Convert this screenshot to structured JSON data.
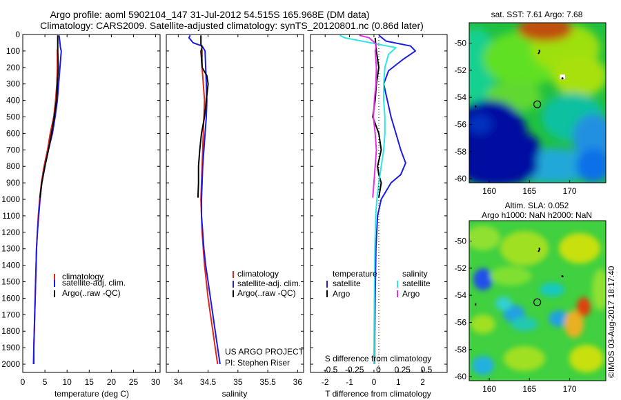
{
  "header": {
    "line1": "Argo profile: aoml 5902104_147 31-Jul-2012 54.515S 165.968E (DM data)",
    "line2": "Climatology: CARS2009. Satellite-adjusted climatology: synTS_20120801.nc (0.86d later)"
  },
  "colors": {
    "climatology": "#e8231a",
    "satellite": "#1a1ae6",
    "argo": "#000000",
    "sat_salinity": "#2ee6e6",
    "argo_salinity": "#e62ee6"
  },
  "legend": {
    "climatology": "climatology",
    "satellite_adj": "satellite-adj. clim.",
    "argo": "Argo(..raw -QC)",
    "temperature_head": "temperature",
    "salinity_head": "salinity",
    "satellite": "satellite",
    "argo_short": "Argo"
  },
  "credit": {
    "project": "US ARGO PROJECT",
    "pi": "PI: Stephen Riser"
  },
  "side_label": "©IMOS 03-Aug-2017 18:17:40",
  "chart_data": [
    {
      "type": "line",
      "id": "temperature",
      "xlabel": "temperature (deg C)",
      "ylabel": "",
      "xlim": [
        0,
        31
      ],
      "ylim": [
        2050,
        0
      ],
      "xticks": [
        0,
        5,
        10,
        15,
        20,
        25,
        30
      ],
      "yticks": [
        0,
        100,
        200,
        300,
        400,
        500,
        600,
        700,
        800,
        900,
        1000,
        1100,
        1200,
        1300,
        1400,
        1500,
        1600,
        1700,
        1800,
        1900,
        2000
      ],
      "series": [
        {
          "name": "climatology",
          "color": "#e8231a",
          "points": [
            [
              7.8,
              90
            ],
            [
              7.8,
              200
            ],
            [
              7.7,
              300
            ],
            [
              7.4,
              400
            ],
            [
              7.0,
              500
            ],
            [
              6.2,
              600
            ],
            [
              5.6,
              700
            ],
            [
              4.8,
              800
            ],
            [
              4.2,
              900
            ],
            [
              3.8,
              1000
            ],
            [
              3.5,
              1100
            ],
            [
              3.3,
              1200
            ],
            [
              3.1,
              1300
            ],
            [
              3.0,
              1400
            ],
            [
              2.9,
              1500
            ],
            [
              2.8,
              1600
            ],
            [
              2.7,
              1700
            ],
            [
              2.6,
              1800
            ],
            [
              2.5,
              1900
            ],
            [
              2.4,
              2000
            ]
          ]
        },
        {
          "name": "satellite-adj. clim.",
          "color": "#1a1ae6",
          "points": [
            [
              8.2,
              5
            ],
            [
              8.4,
              50
            ],
            [
              8.5,
              80
            ],
            [
              8.7,
              100
            ],
            [
              8.4,
              200
            ],
            [
              8.1,
              300
            ],
            [
              7.8,
              400
            ],
            [
              7.3,
              500
            ],
            [
              6.7,
              600
            ],
            [
              5.8,
              700
            ],
            [
              5.0,
              800
            ],
            [
              4.3,
              900
            ],
            [
              3.9,
              1000
            ],
            [
              3.6,
              1100
            ],
            [
              3.3,
              1200
            ],
            [
              3.1,
              1300
            ],
            [
              3.0,
              1400
            ],
            [
              2.9,
              1500
            ],
            [
              2.8,
              1600
            ],
            [
              2.7,
              1700
            ],
            [
              2.6,
              1800
            ],
            [
              2.5,
              1900
            ],
            [
              2.5,
              2000
            ]
          ]
        },
        {
          "name": "Argo(..raw -QC)",
          "color": "#000000",
          "points": [
            [
              7.9,
              5
            ],
            [
              7.9,
              100
            ],
            [
              8.0,
              200
            ],
            [
              7.8,
              300
            ],
            [
              7.6,
              400
            ],
            [
              7.1,
              500
            ],
            [
              6.5,
              600
            ],
            [
              5.8,
              700
            ],
            [
              5.0,
              800
            ],
            [
              4.3,
              900
            ],
            [
              3.9,
              990
            ]
          ]
        }
      ]
    },
    {
      "type": "line",
      "id": "salinity",
      "xlabel": "salinity",
      "ylabel": "",
      "xlim": [
        33.8,
        36.1
      ],
      "ylim": [
        2050,
        0
      ],
      "xticks": [
        34,
        34.5,
        35,
        35.5,
        36
      ],
      "series": [
        {
          "name": "climatology",
          "color": "#e8231a",
          "points": [
            [
              34.4,
              90
            ],
            [
              34.4,
              200
            ],
            [
              34.42,
              300
            ],
            [
              34.44,
              400
            ],
            [
              34.43,
              500
            ],
            [
              34.42,
              600
            ],
            [
              34.41,
              700
            ],
            [
              34.4,
              800
            ],
            [
              34.39,
              900
            ],
            [
              34.38,
              1000
            ],
            [
              34.39,
              1100
            ],
            [
              34.4,
              1200
            ],
            [
              34.42,
              1300
            ],
            [
              34.44,
              1400
            ],
            [
              34.47,
              1500
            ],
            [
              34.5,
              1600
            ],
            [
              34.54,
              1700
            ],
            [
              34.58,
              1800
            ],
            [
              34.62,
              1900
            ],
            [
              34.66,
              2000
            ]
          ]
        },
        {
          "name": "satellite-adj. clim.",
          "color": "#1a1ae6",
          "points": [
            [
              34.2,
              5
            ],
            [
              34.18,
              20
            ],
            [
              34.25,
              50
            ],
            [
              34.4,
              70
            ],
            [
              34.45,
              100
            ],
            [
              34.46,
              200
            ],
            [
              34.47,
              300
            ],
            [
              34.48,
              400
            ],
            [
              34.47,
              500
            ],
            [
              34.45,
              600
            ],
            [
              34.43,
              700
            ],
            [
              34.41,
              800
            ],
            [
              34.4,
              900
            ],
            [
              34.39,
              1000
            ],
            [
              34.39,
              1100
            ],
            [
              34.41,
              1200
            ],
            [
              34.43,
              1300
            ],
            [
              34.46,
              1400
            ],
            [
              34.5,
              1500
            ],
            [
              34.54,
              1600
            ],
            [
              34.58,
              1700
            ],
            [
              34.62,
              1800
            ],
            [
              34.66,
              1900
            ],
            [
              34.7,
              2000
            ]
          ]
        },
        {
          "name": "Argo(..raw -QC)",
          "color": "#000000",
          "points": [
            [
              34.38,
              5
            ],
            [
              34.38,
              60
            ],
            [
              34.4,
              80
            ],
            [
              34.38,
              100
            ],
            [
              34.4,
              200
            ],
            [
              34.48,
              250
            ],
            [
              34.5,
              300
            ],
            [
              34.47,
              400
            ],
            [
              34.44,
              500
            ],
            [
              34.39,
              600
            ],
            [
              34.36,
              700
            ],
            [
              34.34,
              800
            ],
            [
              34.34,
              900
            ],
            [
              34.33,
              990
            ]
          ]
        }
      ]
    },
    {
      "type": "line",
      "id": "difference",
      "xlabel": "T difference from climatology",
      "x2label": "S difference from climatology",
      "ylabel": "",
      "xlim": [
        -2.6,
        3.0
      ],
      "ylim": [
        2050,
        0
      ],
      "xticks": [
        -2,
        -1,
        0,
        1,
        2
      ],
      "x2ticks": [
        -0.5,
        -0.25,
        0,
        0.25,
        0.5
      ],
      "series": [
        {
          "name": "temperature satellite",
          "color": "#1a1ae6",
          "points": [
            [
              0.2,
              5
            ],
            [
              0.5,
              40
            ],
            [
              1.5,
              70
            ],
            [
              1.7,
              100
            ],
            [
              1.2,
              150
            ],
            [
              0.6,
              220
            ],
            [
              0.4,
              300
            ],
            [
              0.55,
              400
            ],
            [
              0.7,
              500
            ],
            [
              0.9,
              600
            ],
            [
              1.1,
              700
            ],
            [
              1.3,
              780
            ],
            [
              1.1,
              850
            ],
            [
              0.7,
              900
            ],
            [
              0.3,
              1000
            ],
            [
              0.15,
              1100
            ],
            [
              0.08,
              1300
            ],
            [
              0.05,
              1600
            ],
            [
              0.02,
              2000
            ]
          ]
        },
        {
          "name": "temperature Argo",
          "color": "#000000",
          "points": [
            [
              0.05,
              20
            ],
            [
              0.1,
              100
            ],
            [
              0.2,
              200
            ],
            [
              0.1,
              300
            ],
            [
              0.05,
              400
            ],
            [
              -0.05,
              500
            ],
            [
              0.1,
              560
            ],
            [
              0.2,
              600
            ],
            [
              0.3,
              700
            ],
            [
              0.15,
              800
            ],
            [
              0.2,
              850
            ],
            [
              0.3,
              900
            ],
            [
              0.2,
              990
            ]
          ]
        },
        {
          "name": "salinity satellite",
          "color": "#2ee6e6",
          "points": [
            [
              -1.4,
              5
            ],
            [
              -1.2,
              20
            ],
            [
              0.2,
              60
            ],
            [
              0.9,
              80
            ],
            [
              0.6,
              120
            ],
            [
              0.45,
              200
            ],
            [
              0.4,
              300
            ],
            [
              0.4,
              400
            ],
            [
              0.45,
              500
            ],
            [
              0.45,
              600
            ],
            [
              0.4,
              700
            ],
            [
              0.3,
              800
            ],
            [
              0.2,
              900
            ],
            [
              0.12,
              1000
            ],
            [
              0.07,
              1100
            ],
            [
              0.04,
              1300
            ],
            [
              0.02,
              1600
            ],
            [
              0.0,
              2000
            ]
          ]
        },
        {
          "name": "salinity Argo",
          "color": "#e62ee6",
          "points": [
            [
              -0.6,
              5
            ],
            [
              -0.2,
              20
            ],
            [
              0.1,
              60
            ],
            [
              0.05,
              100
            ],
            [
              0.1,
              200
            ],
            [
              0.08,
              300
            ],
            [
              0.02,
              400
            ],
            [
              -0.02,
              500
            ],
            [
              0.05,
              600
            ],
            [
              0.1,
              700
            ],
            [
              0.05,
              800
            ],
            [
              0.0,
              900
            ],
            [
              -0.05,
              990
            ]
          ]
        }
      ]
    },
    {
      "type": "heatmap",
      "id": "sst-map",
      "title": "sat. SST: 7.61 Argo: 7.68",
      "xlim": [
        157.5,
        174.5
      ],
      "ylim": [
        -60.3,
        -48.5
      ],
      "xticks": [
        160,
        165,
        170
      ],
      "yticks": [
        -50,
        -52,
        -54,
        -56,
        -58,
        -60
      ],
      "argo_position": [
        165.968,
        -54.515
      ]
    },
    {
      "type": "heatmap",
      "id": "sla-map",
      "title": "Altim. SLA: 0.052",
      "subtitle": "Argo h1000: NaN h2000: NaN",
      "xlim": [
        157.5,
        174.5
      ],
      "ylim": [
        -60.3,
        -48.5
      ],
      "xticks": [
        160,
        165,
        170
      ],
      "yticks": [
        -50,
        -52,
        -54,
        -56,
        -58,
        -60
      ],
      "argo_position": [
        165.968,
        -54.515
      ]
    }
  ]
}
